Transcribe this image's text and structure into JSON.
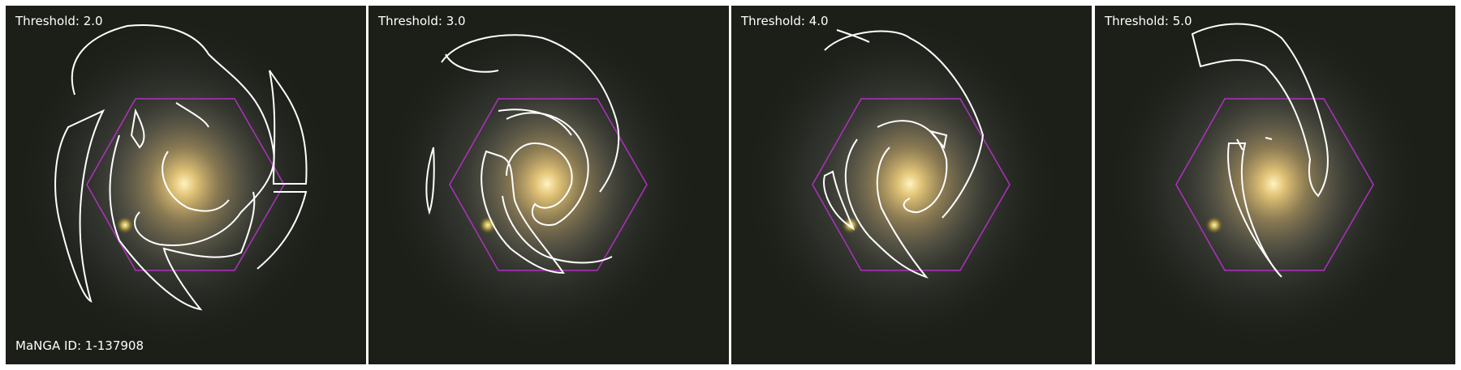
{
  "panels": [
    {
      "threshold_label": "Threshold: 2.0"
    },
    {
      "threshold_label": "Threshold: 3.0"
    },
    {
      "threshold_label": "Threshold: 4.0"
    },
    {
      "threshold_label": "Threshold: 5.0"
    }
  ],
  "manga_id_label": "MaNGA ID: 1-137908",
  "colors": {
    "contour": "#ffffff",
    "hexagon": "#b030c0",
    "background": "#1c1f18",
    "bulge": "#e8c878"
  },
  "contents": {
    "image": "galaxy-spiral-image",
    "overlay": [
      "contour-lines",
      "ifu-hexagon-outline"
    ]
  }
}
